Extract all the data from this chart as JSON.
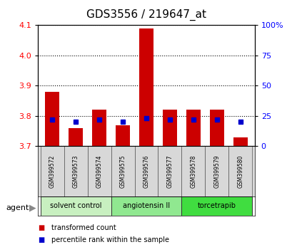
{
  "title": "GDS3556 / 219647_at",
  "samples": [
    "GSM399572",
    "GSM399573",
    "GSM399574",
    "GSM399575",
    "GSM399576",
    "GSM399577",
    "GSM399578",
    "GSM399579",
    "GSM399580"
  ],
  "transformed_counts": [
    3.88,
    3.76,
    3.82,
    3.77,
    4.09,
    3.82,
    3.82,
    3.82,
    3.73
  ],
  "percentile_ranks": [
    22,
    20,
    22,
    20,
    23,
    22,
    22,
    22,
    20
  ],
  "ylim_left": [
    3.7,
    4.1
  ],
  "ylim_right": [
    0,
    100
  ],
  "yticks_left": [
    3.7,
    3.8,
    3.9,
    4.0,
    4.1
  ],
  "yticks_right": [
    0,
    25,
    50,
    75,
    100
  ],
  "ytick_labels_right": [
    "0",
    "25",
    "50",
    "75",
    "100%"
  ],
  "groups": [
    {
      "label": "solvent control",
      "indices": [
        0,
        1,
        2
      ],
      "color": "#c8f0c0"
    },
    {
      "label": "angiotensin II",
      "indices": [
        3,
        4,
        5
      ],
      "color": "#90e890"
    },
    {
      "label": "torcetrapib",
      "indices": [
        6,
        7,
        8
      ],
      "color": "#40dd40"
    }
  ],
  "bar_color": "#cc0000",
  "percentile_color": "#0000cc",
  "bar_width": 0.6,
  "agent_label": "agent",
  "legend_items": [
    {
      "label": "transformed count",
      "color": "#cc0000"
    },
    {
      "label": "percentile rank within the sample",
      "color": "#0000cc"
    }
  ],
  "grid_linestyle": "dotted",
  "baseline": 3.7,
  "title_fontsize": 11,
  "tick_fontsize": 8,
  "sample_fontsize": 5.5,
  "group_fontsize": 7,
  "legend_fontsize": 7
}
